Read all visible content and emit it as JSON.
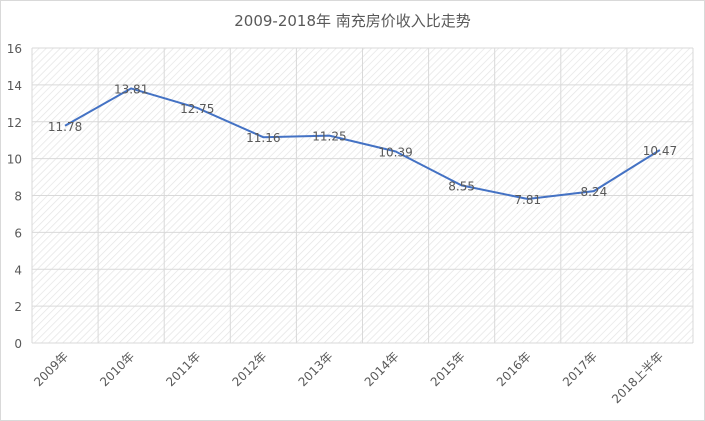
{
  "chart_data": {
    "type": "line",
    "title": "2009-2018年 南充房价收入比走势",
    "categories": [
      "2009年",
      "2010年",
      "2011年",
      "2012年",
      "2013年",
      "2014年",
      "2015年",
      "2016年",
      "2017年",
      "2018上半年"
    ],
    "series": [
      {
        "values": [
          11.78,
          13.81,
          12.75,
          11.16,
          11.25,
          10.39,
          8.55,
          7.81,
          8.24,
          10.47
        ]
      }
    ],
    "ylim": [
      0,
      16
    ],
    "yticks": [
      0,
      2,
      4,
      6,
      8,
      10,
      12,
      14,
      16
    ],
    "grid": true,
    "legend": "none",
    "colors": {
      "line": "#4472c4",
      "grid": "#d9d9d9",
      "text": "#595959"
    }
  }
}
